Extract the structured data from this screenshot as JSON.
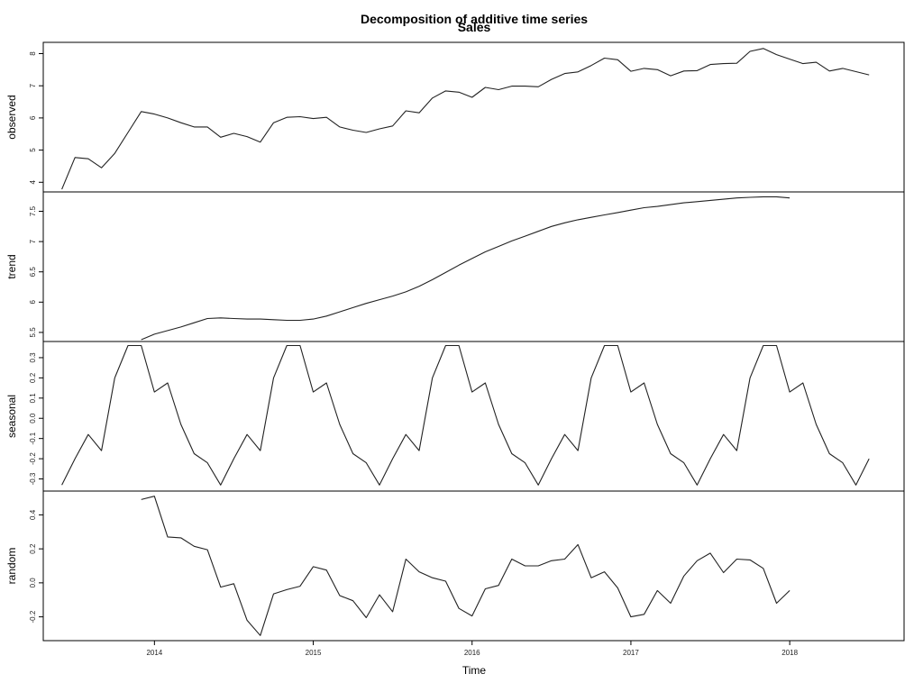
{
  "chart_data": {
    "type": "line",
    "title": "Decomposition of additive time series",
    "subtitle": "Sales",
    "xlabel": "Time",
    "xlim": [
      2013.3,
      2018.72
    ],
    "x_ticks": [
      2014,
      2015,
      2016,
      2017,
      2018
    ],
    "panels": [
      {
        "name": "observed",
        "ylabel": "observed",
        "ylim": [
          3.7,
          8.35
        ],
        "y_ticks": [
          4,
          5,
          6,
          7,
          8
        ],
        "start": 2013.4167,
        "values": [
          3.78,
          4.77,
          4.73,
          4.45,
          4.9,
          5.55,
          6.2,
          6.12,
          6.0,
          5.85,
          5.72,
          5.72,
          5.4,
          5.52,
          5.42,
          5.25,
          5.85,
          6.02,
          6.04,
          5.98,
          6.02,
          5.72,
          5.62,
          5.55,
          5.66,
          5.75,
          6.22,
          6.16,
          6.62,
          6.84,
          6.8,
          6.64,
          6.95,
          6.88,
          6.99,
          6.99,
          6.97,
          7.2,
          7.38,
          7.43,
          7.63,
          7.86,
          7.81,
          7.45,
          7.54,
          7.5,
          7.31,
          7.46,
          7.47,
          7.66,
          7.69,
          7.7,
          8.07,
          8.16,
          7.97,
          7.83,
          7.69,
          7.73,
          7.46,
          7.54,
          7.44,
          7.34
        ]
      },
      {
        "name": "trend",
        "ylabel": "trend",
        "ylim": [
          5.35,
          7.82
        ],
        "y_ticks": [
          5.5,
          6.0,
          6.5,
          7.0,
          7.5
        ],
        "start": 2013.9167,
        "values": [
          5.38,
          5.47,
          5.53,
          5.59,
          5.66,
          5.73,
          5.74,
          5.73,
          5.72,
          5.72,
          5.71,
          5.7,
          5.7,
          5.72,
          5.77,
          5.84,
          5.91,
          5.98,
          6.04,
          6.1,
          6.17,
          6.26,
          6.37,
          6.49,
          6.61,
          6.72,
          6.83,
          6.92,
          7.01,
          7.09,
          7.17,
          7.25,
          7.31,
          7.36,
          7.4,
          7.44,
          7.48,
          7.52,
          7.56,
          7.58,
          7.61,
          7.64,
          7.66,
          7.68,
          7.7,
          7.72,
          7.73,
          7.74,
          7.74,
          7.72
        ]
      },
      {
        "name": "seasonal",
        "ylabel": "seasonal",
        "ylim": [
          -0.36,
          0.38
        ],
        "y_ticks": [
          -0.3,
          -0.2,
          -0.1,
          0.0,
          0.1,
          0.2,
          0.3
        ],
        "start": 2013.4167,
        "values": [
          -0.33,
          -0.2,
          -0.08,
          -0.16,
          0.2,
          0.36,
          0.36,
          0.13,
          0.175,
          -0.03,
          -0.175,
          -0.22,
          -0.33,
          -0.2,
          -0.08,
          -0.16,
          0.2,
          0.36,
          0.36,
          0.13,
          0.175,
          -0.03,
          -0.175,
          -0.22,
          -0.33,
          -0.2,
          -0.08,
          -0.16,
          0.2,
          0.36,
          0.36,
          0.13,
          0.175,
          -0.03,
          -0.175,
          -0.22,
          -0.33,
          -0.2,
          -0.08,
          -0.16,
          0.2,
          0.36,
          0.36,
          0.13,
          0.175,
          -0.03,
          -0.175,
          -0.22,
          -0.33,
          -0.2,
          -0.08,
          -0.16,
          0.2,
          0.36,
          0.36,
          0.13,
          0.175,
          -0.03,
          -0.175,
          -0.22,
          -0.33,
          -0.2
        ]
      },
      {
        "name": "random",
        "ylabel": "random",
        "ylim": [
          -0.34,
          0.54
        ],
        "y_ticks": [
          -0.2,
          0.0,
          0.2,
          0.4
        ],
        "start": 2013.9167,
        "values": [
          0.49,
          0.51,
          0.27,
          0.265,
          0.215,
          0.195,
          -0.025,
          -0.005,
          -0.22,
          -0.31,
          -0.065,
          -0.04,
          -0.02,
          0.095,
          0.075,
          -0.075,
          -0.105,
          -0.205,
          -0.07,
          -0.17,
          0.14,
          0.065,
          0.03,
          0.01,
          -0.15,
          -0.195,
          -0.035,
          -0.015,
          0.14,
          0.1,
          0.1,
          0.13,
          0.14,
          0.225,
          0.03,
          0.065,
          -0.03,
          -0.2,
          -0.185,
          -0.045,
          -0.12,
          0.04,
          0.13,
          0.175,
          0.06,
          0.14,
          0.135,
          0.085,
          -0.12,
          -0.045
        ]
      }
    ]
  }
}
